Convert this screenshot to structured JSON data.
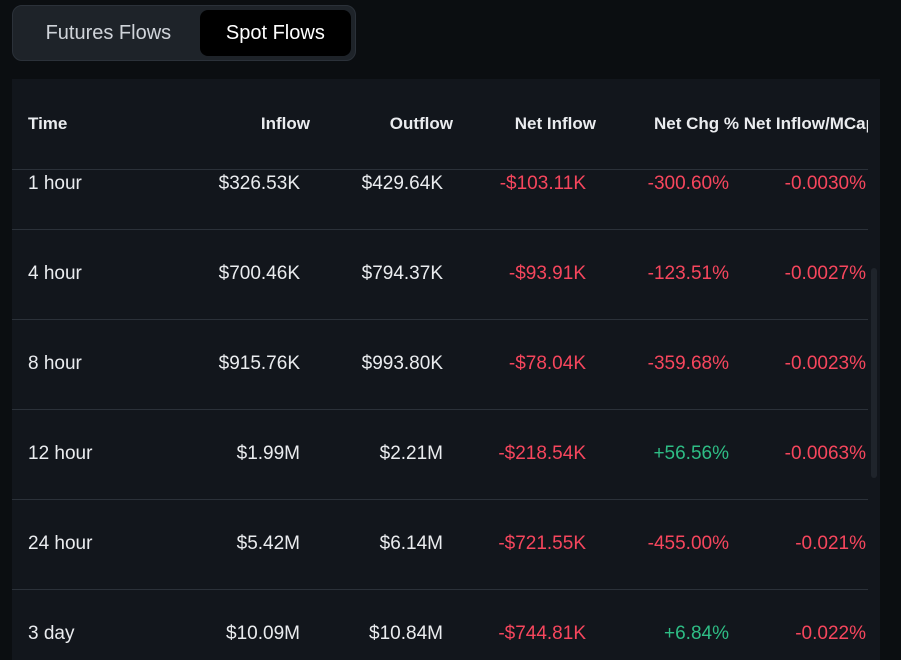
{
  "tabs": [
    {
      "label": "Futures Flows",
      "active": false
    },
    {
      "label": "Spot Flows",
      "active": true
    }
  ],
  "table": {
    "headers": {
      "time": "Time",
      "inflow": "Inflow",
      "outflow": "Outflow",
      "net_inflow": "Net Inflow",
      "net_chg": "Net Chg %",
      "net_inflow_mcap": "Net Inflow/MCap"
    },
    "rows": [
      {
        "time": "1 hour",
        "inflow": "$326.53K",
        "outflow": "$429.64K",
        "net_inflow": "-$103.11K",
        "net_chg": "-300.60%",
        "net_inflow_mcap": "-0.0030%"
      },
      {
        "time": "4 hour",
        "inflow": "$700.46K",
        "outflow": "$794.37K",
        "net_inflow": "-$93.91K",
        "net_chg": "-123.51%",
        "net_inflow_mcap": "-0.0027%"
      },
      {
        "time": "8 hour",
        "inflow": "$915.76K",
        "outflow": "$993.80K",
        "net_inflow": "-$78.04K",
        "net_chg": "-359.68%",
        "net_inflow_mcap": "-0.0023%"
      },
      {
        "time": "12 hour",
        "inflow": "$1.99M",
        "outflow": "$2.21M",
        "net_inflow": "-$218.54K",
        "net_chg": "+56.56%",
        "net_inflow_mcap": "-0.0063%"
      },
      {
        "time": "24 hour",
        "inflow": "$5.42M",
        "outflow": "$6.14M",
        "net_inflow": "-$721.55K",
        "net_chg": "-455.00%",
        "net_inflow_mcap": "-0.021%"
      },
      {
        "time": "3 day",
        "inflow": "$10.09M",
        "outflow": "$10.84M",
        "net_inflow": "-$744.81K",
        "net_chg": "+6.84%",
        "net_inflow_mcap": "-0.022%"
      }
    ]
  },
  "colors": {
    "negative": "#f6465d",
    "positive": "#2ebd85",
    "background": "#0b0e11",
    "panel": "#12161c"
  }
}
